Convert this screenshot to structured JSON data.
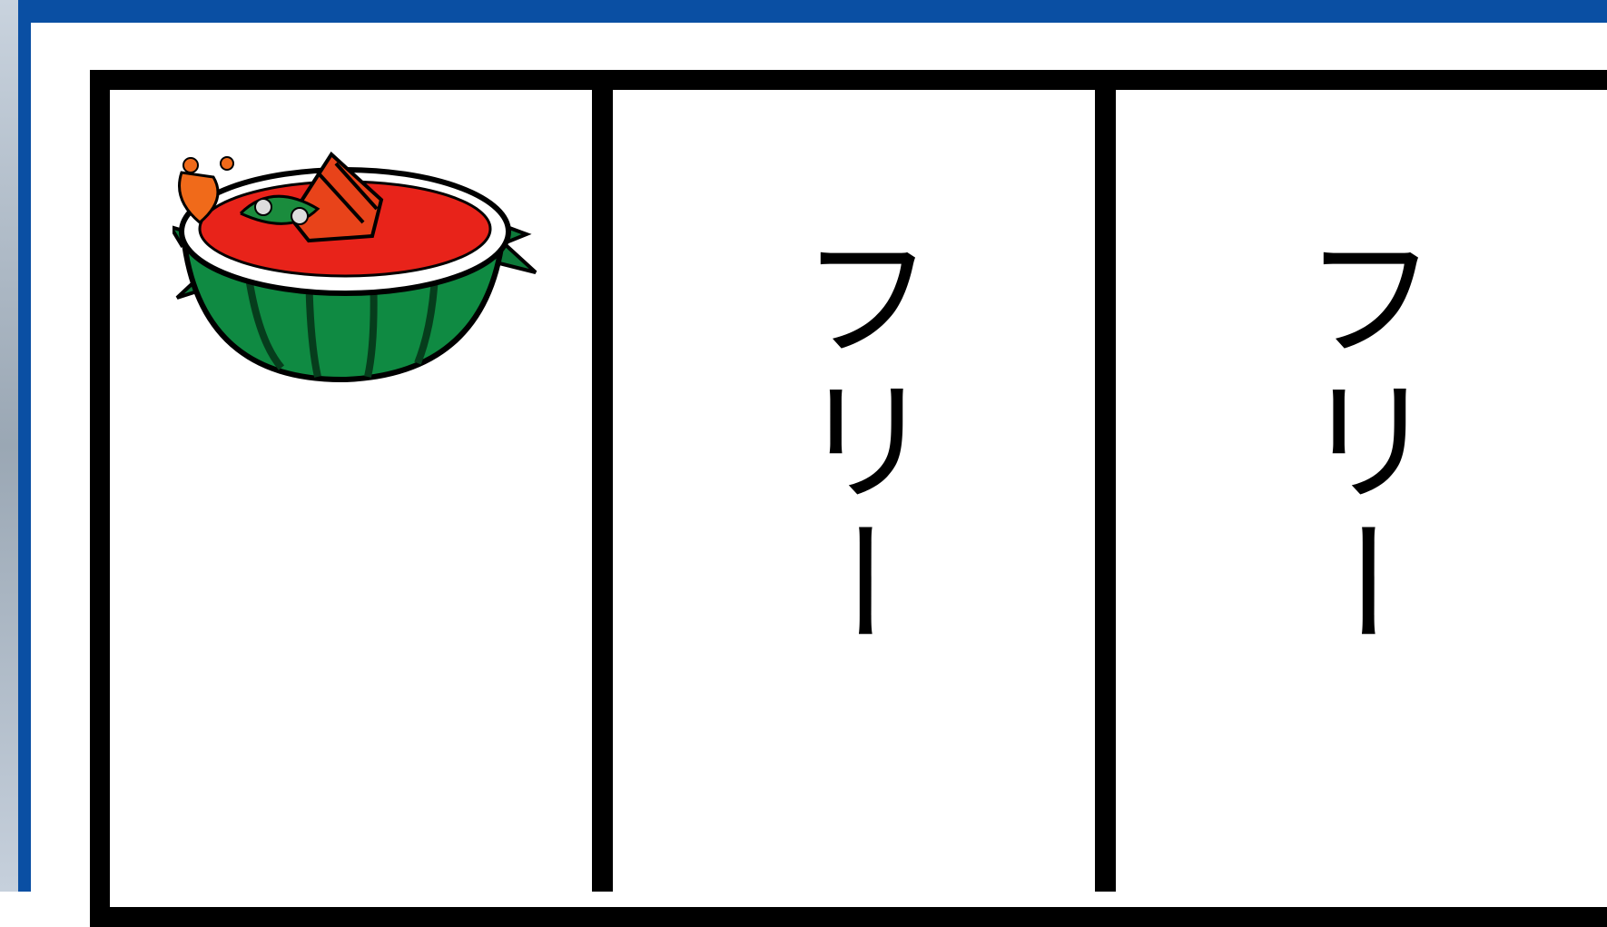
{
  "reels": [
    "フリー",
    "フリー"
  ]
}
